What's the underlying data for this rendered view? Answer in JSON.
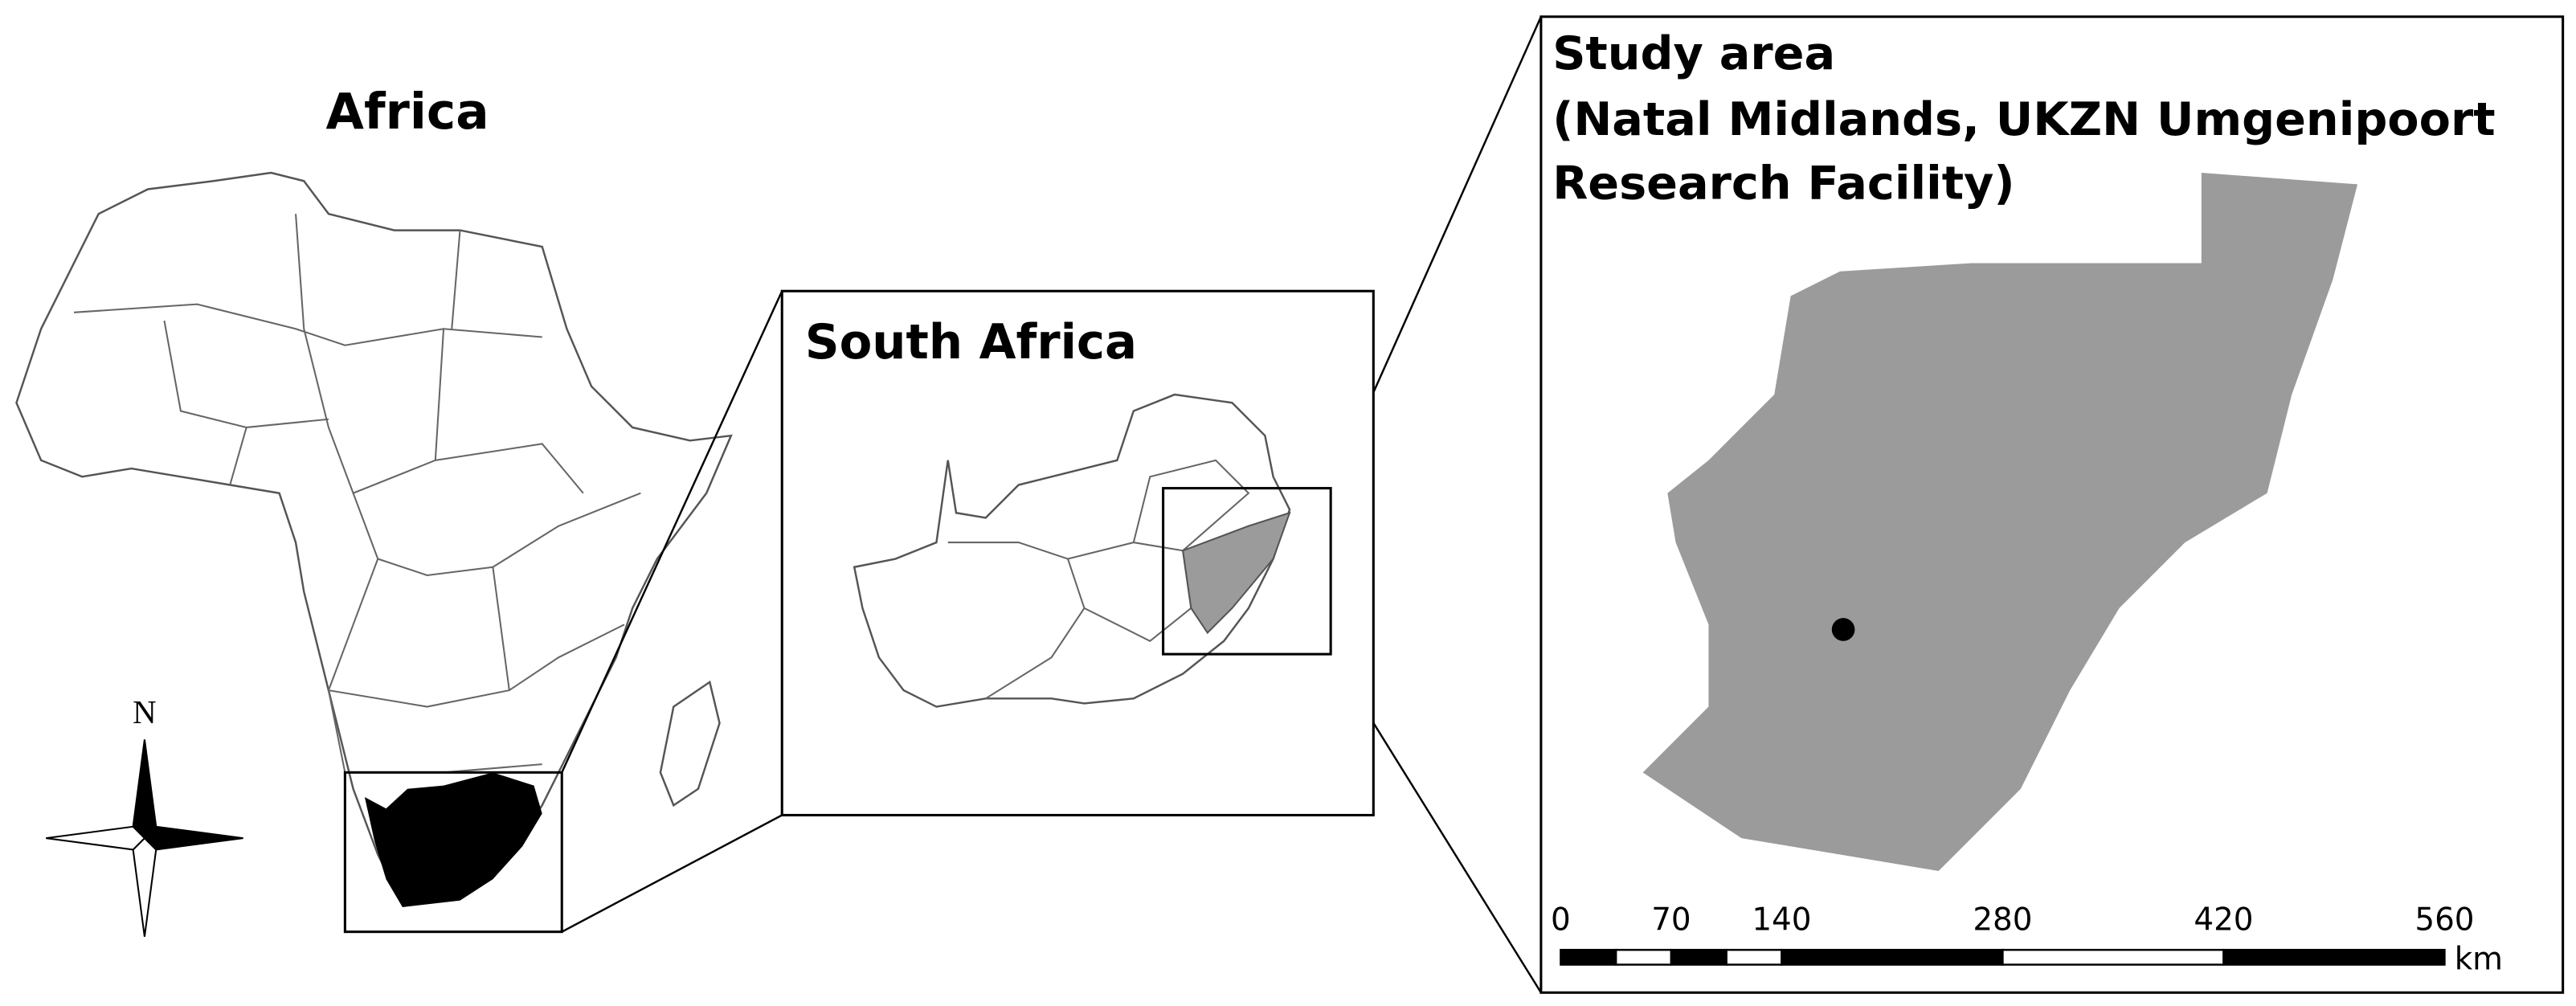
{
  "africa": {
    "title": "Africa",
    "north_label": "N"
  },
  "south_africa": {
    "title": "South Africa"
  },
  "study_area": {
    "title_lines": [
      "Study area",
      "(Natal Midlands, UKZN Umgenipoort",
      "Research Facility)"
    ],
    "scale_bar": {
      "ticks": [
        0,
        70,
        140,
        280,
        420,
        560
      ],
      "unit": "km"
    }
  }
}
